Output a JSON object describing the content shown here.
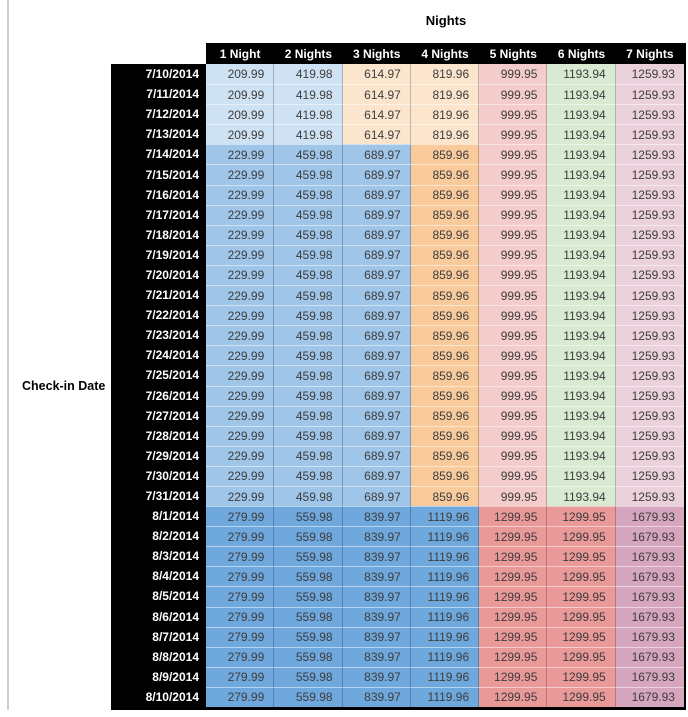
{
  "page": {
    "background": "#ffffff",
    "left_rule_color": "#cfcfcf"
  },
  "chart_data": {
    "type": "table",
    "title": "Nights",
    "row_axis_label": "Check-in Date",
    "header_bg": "#000000",
    "header_text_color": "#ffffff",
    "value_text_color": "#3d3d3d",
    "column_headers": [
      "1 Night",
      "2 Nights",
      "3 Nights",
      "4 Nights",
      "5 Nights",
      "6 Nights",
      "7 Nights"
    ],
    "color_bands": {
      "early_july": [
        "#cfe2f3",
        "#cfe2f3",
        "#fce5cd",
        "#fce5cd",
        "#f4cccc",
        "#d9ead3",
        "#ead1dc"
      ],
      "mid_july": [
        "#9fc5e8",
        "#9fc5e8",
        "#9fc5e8",
        "#f9cb9c",
        "#f4cccc",
        "#d9ead3",
        "#ead1dc"
      ],
      "august": [
        "#6fa8dc",
        "#6fa8dc",
        "#6fa8dc",
        "#6fa8dc",
        "#ea9999",
        "#ea9999",
        "#d5a6bd"
      ]
    },
    "rows": [
      {
        "date": "7/10/2014",
        "band": "early_july",
        "values": [
          "209.99",
          "419.98",
          "614.97",
          "819.96",
          "999.95",
          "1193.94",
          "1259.93"
        ]
      },
      {
        "date": "7/11/2014",
        "band": "early_july",
        "values": [
          "209.99",
          "419.98",
          "614.97",
          "819.96",
          "999.95",
          "1193.94",
          "1259.93"
        ]
      },
      {
        "date": "7/12/2014",
        "band": "early_july",
        "values": [
          "209.99",
          "419.98",
          "614.97",
          "819.96",
          "999.95",
          "1193.94",
          "1259.93"
        ]
      },
      {
        "date": "7/13/2014",
        "band": "early_july",
        "values": [
          "209.99",
          "419.98",
          "614.97",
          "819.96",
          "999.95",
          "1193.94",
          "1259.93"
        ]
      },
      {
        "date": "7/14/2014",
        "band": "mid_july",
        "values": [
          "229.99",
          "459.98",
          "689.97",
          "859.96",
          "999.95",
          "1193.94",
          "1259.93"
        ]
      },
      {
        "date": "7/15/2014",
        "band": "mid_july",
        "values": [
          "229.99",
          "459.98",
          "689.97",
          "859.96",
          "999.95",
          "1193.94",
          "1259.93"
        ]
      },
      {
        "date": "7/16/2014",
        "band": "mid_july",
        "values": [
          "229.99",
          "459.98",
          "689.97",
          "859.96",
          "999.95",
          "1193.94",
          "1259.93"
        ]
      },
      {
        "date": "7/17/2014",
        "band": "mid_july",
        "values": [
          "229.99",
          "459.98",
          "689.97",
          "859.96",
          "999.95",
          "1193.94",
          "1259.93"
        ]
      },
      {
        "date": "7/18/2014",
        "band": "mid_july",
        "values": [
          "229.99",
          "459.98",
          "689.97",
          "859.96",
          "999.95",
          "1193.94",
          "1259.93"
        ]
      },
      {
        "date": "7/19/2014",
        "band": "mid_july",
        "values": [
          "229.99",
          "459.98",
          "689.97",
          "859.96",
          "999.95",
          "1193.94",
          "1259.93"
        ]
      },
      {
        "date": "7/20/2014",
        "band": "mid_july",
        "values": [
          "229.99",
          "459.98",
          "689.97",
          "859.96",
          "999.95",
          "1193.94",
          "1259.93"
        ]
      },
      {
        "date": "7/21/2014",
        "band": "mid_july",
        "values": [
          "229.99",
          "459.98",
          "689.97",
          "859.96",
          "999.95",
          "1193.94",
          "1259.93"
        ]
      },
      {
        "date": "7/22/2014",
        "band": "mid_july",
        "values": [
          "229.99",
          "459.98",
          "689.97",
          "859.96",
          "999.95",
          "1193.94",
          "1259.93"
        ]
      },
      {
        "date": "7/23/2014",
        "band": "mid_july",
        "values": [
          "229.99",
          "459.98",
          "689.97",
          "859.96",
          "999.95",
          "1193.94",
          "1259.93"
        ]
      },
      {
        "date": "7/24/2014",
        "band": "mid_july",
        "values": [
          "229.99",
          "459.98",
          "689.97",
          "859.96",
          "999.95",
          "1193.94",
          "1259.93"
        ]
      },
      {
        "date": "7/25/2014",
        "band": "mid_july",
        "values": [
          "229.99",
          "459.98",
          "689.97",
          "859.96",
          "999.95",
          "1193.94",
          "1259.93"
        ]
      },
      {
        "date": "7/26/2014",
        "band": "mid_july",
        "values": [
          "229.99",
          "459.98",
          "689.97",
          "859.96",
          "999.95",
          "1193.94",
          "1259.93"
        ]
      },
      {
        "date": "7/27/2014",
        "band": "mid_july",
        "values": [
          "229.99",
          "459.98",
          "689.97",
          "859.96",
          "999.95",
          "1193.94",
          "1259.93"
        ]
      },
      {
        "date": "7/28/2014",
        "band": "mid_july",
        "values": [
          "229.99",
          "459.98",
          "689.97",
          "859.96",
          "999.95",
          "1193.94",
          "1259.93"
        ]
      },
      {
        "date": "7/29/2014",
        "band": "mid_july",
        "values": [
          "229.99",
          "459.98",
          "689.97",
          "859.96",
          "999.95",
          "1193.94",
          "1259.93"
        ]
      },
      {
        "date": "7/30/2014",
        "band": "mid_july",
        "values": [
          "229.99",
          "459.98",
          "689.97",
          "859.96",
          "999.95",
          "1193.94",
          "1259.93"
        ]
      },
      {
        "date": "7/31/2014",
        "band": "mid_july",
        "values": [
          "229.99",
          "459.98",
          "689.97",
          "859.96",
          "999.95",
          "1193.94",
          "1259.93"
        ]
      },
      {
        "date": "8/1/2014",
        "band": "august",
        "values": [
          "279.99",
          "559.98",
          "839.97",
          "1119.96",
          "1299.95",
          "1299.95",
          "1679.93"
        ]
      },
      {
        "date": "8/2/2014",
        "band": "august",
        "values": [
          "279.99",
          "559.98",
          "839.97",
          "1119.96",
          "1299.95",
          "1299.95",
          "1679.93"
        ]
      },
      {
        "date": "8/3/2014",
        "band": "august",
        "values": [
          "279.99",
          "559.98",
          "839.97",
          "1119.96",
          "1299.95",
          "1299.95",
          "1679.93"
        ]
      },
      {
        "date": "8/4/2014",
        "band": "august",
        "values": [
          "279.99",
          "559.98",
          "839.97",
          "1119.96",
          "1299.95",
          "1299.95",
          "1679.93"
        ]
      },
      {
        "date": "8/5/2014",
        "band": "august",
        "values": [
          "279.99",
          "559.98",
          "839.97",
          "1119.96",
          "1299.95",
          "1299.95",
          "1679.93"
        ]
      },
      {
        "date": "8/6/2014",
        "band": "august",
        "values": [
          "279.99",
          "559.98",
          "839.97",
          "1119.96",
          "1299.95",
          "1299.95",
          "1679.93"
        ]
      },
      {
        "date": "8/7/2014",
        "band": "august",
        "values": [
          "279.99",
          "559.98",
          "839.97",
          "1119.96",
          "1299.95",
          "1299.95",
          "1679.93"
        ]
      },
      {
        "date": "8/8/2014",
        "band": "august",
        "values": [
          "279.99",
          "559.98",
          "839.97",
          "1119.96",
          "1299.95",
          "1299.95",
          "1679.93"
        ]
      },
      {
        "date": "8/9/2014",
        "band": "august",
        "values": [
          "279.99",
          "559.98",
          "839.97",
          "1119.96",
          "1299.95",
          "1299.95",
          "1679.93"
        ]
      },
      {
        "date": "8/10/2014",
        "band": "august",
        "values": [
          "279.99",
          "559.98",
          "839.97",
          "1119.96",
          "1299.95",
          "1299.95",
          "1679.93"
        ]
      }
    ]
  }
}
